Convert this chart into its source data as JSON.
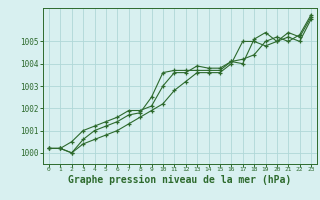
{
  "x": [
    0,
    1,
    2,
    3,
    4,
    5,
    6,
    7,
    8,
    9,
    10,
    11,
    12,
    13,
    14,
    15,
    16,
    17,
    18,
    19,
    20,
    21,
    22,
    23
  ],
  "line1": [
    1000.2,
    1000.2,
    1000.0,
    1000.4,
    1000.6,
    1000.8,
    1001.0,
    1001.3,
    1001.6,
    1001.9,
    1002.2,
    1002.8,
    1003.2,
    1003.6,
    1003.6,
    1003.6,
    1004.0,
    1005.0,
    1005.0,
    1004.8,
    1005.0,
    1005.2,
    1005.0,
    1006.0
  ],
  "line2": [
    1000.2,
    1000.2,
    1000.0,
    1000.6,
    1001.0,
    1001.2,
    1001.4,
    1001.7,
    1001.8,
    1002.5,
    1003.6,
    1003.7,
    1003.7,
    1003.7,
    1003.7,
    1003.7,
    1004.1,
    1004.0,
    1005.1,
    1005.4,
    1005.0,
    1005.4,
    1005.2,
    1006.1
  ],
  "line3": [
    1000.2,
    1000.2,
    1000.5,
    1001.0,
    1001.2,
    1001.4,
    1001.6,
    1001.9,
    1001.9,
    1002.1,
    1003.0,
    1003.6,
    1003.6,
    1003.9,
    1003.8,
    1003.8,
    1004.1,
    1004.2,
    1004.4,
    1005.0,
    1005.2,
    1005.0,
    1005.3,
    1006.2
  ],
  "line_color": "#2d6a2d",
  "bg_color": "#d8f0f0",
  "grid_color": "#b0d8d8",
  "xlabel": "Graphe pression niveau de la mer (hPa)",
  "xlabel_fontsize": 7,
  "tick_color": "#2d6a2d",
  "ylim": [
    999.5,
    1006.5
  ],
  "yticks": [
    1000,
    1001,
    1002,
    1003,
    1004,
    1005
  ],
  "xticks": [
    0,
    1,
    2,
    3,
    4,
    5,
    6,
    7,
    8,
    9,
    10,
    11,
    12,
    13,
    14,
    15,
    16,
    17,
    18,
    19,
    20,
    21,
    22,
    23
  ],
  "xtick_labels": [
    "0",
    "1",
    "2",
    "3",
    "4",
    "5",
    "6",
    "7",
    "8",
    "9",
    "10",
    "11",
    "12",
    "13",
    "14",
    "15",
    "16",
    "17",
    "18",
    "19",
    "20",
    "21",
    "22",
    "23"
  ]
}
